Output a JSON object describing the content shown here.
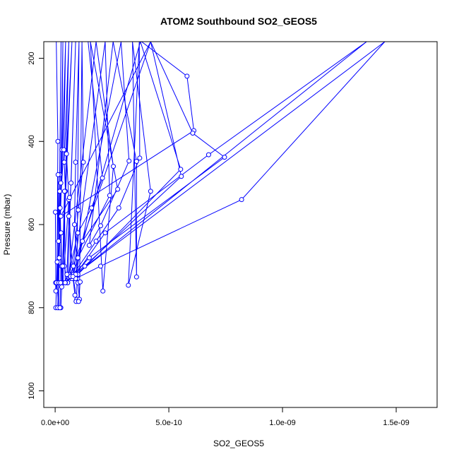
{
  "chart_data": {
    "type": "line",
    "title": "ATOM2 Southbound SO2_GEOS5",
    "xlabel": "SO2_GEOS5",
    "ylabel": "Pressure (mbar)",
    "xlim": [
      -5e-11,
      1.68e-09
    ],
    "ylim": [
      1040,
      160
    ],
    "y_reversed": true,
    "grid": false,
    "x_ticks": [
      0,
      5e-10,
      1e-09,
      1.5e-09
    ],
    "x_tick_labels": [
      "0.0e+00",
      "5.0e-10",
      "1.0e-09",
      "1.5e-09"
    ],
    "y_ticks": [
      200,
      400,
      600,
      800,
      1000
    ],
    "y_tick_labels": [
      "200",
      "400",
      "600",
      "800",
      "1000"
    ],
    "series_color": "#0000ff",
    "series": [
      {
        "points": [
          [
            5e-12,
            160
          ],
          [
            1.2e-11,
            400
          ],
          [
            8e-12,
            740
          ],
          [
            1.5e-11,
            800
          ],
          [
            2e-11,
            520
          ],
          [
            2.6e-11,
            160
          ],
          [
            2e-11,
            480
          ],
          [
            1.2e-11,
            740
          ],
          [
            3e-11,
            420
          ],
          [
            3.4e-11,
            160
          ],
          [
            2.5e-11,
            500
          ],
          [
            1.5e-11,
            640
          ],
          [
            1e-11,
            740
          ],
          [
            1.8e-11,
            680
          ],
          [
            4.6e-11,
            160
          ],
          [
            3.8e-11,
            420
          ],
          [
            2.2e-11,
            560
          ],
          [
            2.8e-11,
            700
          ],
          [
            3.5e-11,
            740
          ],
          [
            6e-11,
            160
          ],
          [
            4e-11,
            450
          ],
          [
            4.5e-11,
            520
          ],
          [
            3e-11,
            740
          ],
          [
            2.5e-11,
            800
          ],
          [
            7.4e-11,
            160
          ],
          [
            5e-11,
            430
          ],
          [
            6e-11,
            540
          ],
          [
            4e-11,
            700
          ],
          [
            5.5e-11,
            740
          ],
          [
            9e-11,
            160
          ],
          [
            7e-11,
            500
          ],
          [
            6e-11,
            580
          ],
          [
            8e-11,
            730
          ],
          [
            9.5e-11,
            780
          ],
          [
            1.05e-10,
            160
          ],
          [
            9e-11,
            450
          ],
          [
            8.5e-11,
            600
          ],
          [
            1e-10,
            740
          ],
          [
            1.07e-10,
            780
          ],
          [
            1.18e-10,
            160
          ],
          [
            1.24e-10,
            450
          ],
          [
            1.02e-10,
            565
          ],
          [
            8e-11,
            700
          ],
          [
            7.5e-11,
            730
          ]
        ]
      },
      {
        "points": [
          [
            1.45e-10,
            160
          ],
          [
            2.08e-10,
            488
          ],
          [
            1.6e-10,
            560
          ],
          [
            1e-10,
            620
          ],
          [
            6e-11,
            720
          ],
          [
            1.8e-10,
            160
          ],
          [
            2.56e-10,
            460
          ],
          [
            2.1e-10,
            760
          ],
          [
            1.55e-10,
            160
          ],
          [
            2.75e-10,
            515
          ],
          [
            1.2e-10,
            640
          ],
          [
            8e-11,
            720
          ],
          [
            2.2e-10,
            160
          ],
          [
            2.4e-10,
            530
          ],
          [
            1e-10,
            680
          ],
          [
            9e-11,
            725
          ],
          [
            2.9e-10,
            160
          ],
          [
            3.25e-10,
            447
          ],
          [
            2e-10,
            603
          ],
          [
            1.5e-10,
            650
          ],
          [
            2.55e-10,
            160
          ],
          [
            3.58e-10,
            448
          ],
          [
            3.58e-10,
            726
          ],
          [
            3.4e-10,
            160
          ],
          [
            4.2e-10,
            520
          ],
          [
            3.22e-10,
            746
          ],
          [
            3.7e-10,
            160
          ],
          [
            3.72e-10,
            440
          ],
          [
            2.8e-10,
            560
          ],
          [
            1.8e-10,
            640
          ],
          [
            8e-11,
            720
          ],
          [
            3.75e-10,
            160
          ],
          [
            5.52e-10,
            467
          ],
          [
            1e-10,
            720
          ],
          [
            5.5e-11,
            740
          ],
          [
            4.2e-10,
            160
          ],
          [
            5.55e-10,
            484
          ],
          [
            1.3e-10,
            700
          ],
          [
            7e-11,
            725
          ]
        ]
      },
      {
        "points": [
          [
            3.8e-10,
            160
          ],
          [
            5.8e-10,
            243
          ],
          [
            6.1e-10,
            374
          ],
          [
            2.5e-11,
            580
          ],
          [
            4.2e-10,
            160
          ],
          [
            6.05e-10,
            380
          ],
          [
            7.45e-10,
            438
          ],
          [
            1.5e-10,
            680
          ],
          [
            4.5e-11,
            740
          ],
          [
            1.37e-09,
            160
          ],
          [
            6.75e-10,
            432
          ],
          [
            2.2e-10,
            620
          ],
          [
            9e-11,
            720
          ],
          [
            1.45e-09,
            160
          ],
          [
            8.2e-10,
            540
          ],
          [
            2e-10,
            700
          ],
          [
            9e-11,
            730
          ]
        ]
      },
      {
        "points": [
          [
            1e-12,
            570
          ],
          [
            3e-12,
            760
          ],
          [
            2e-12,
            740
          ],
          [
            6e-12,
            740
          ],
          [
            3e-12,
            800
          ],
          [
            9e-12,
            690
          ],
          [
            1.3e-11,
            480
          ],
          [
            1.6e-11,
            740
          ],
          [
            1.1e-11,
            800
          ],
          [
            2.1e-11,
            800
          ],
          [
            2.4e-11,
            740
          ],
          [
            2.6e-11,
            620
          ],
          [
            2.9e-11,
            750
          ],
          [
            3.3e-11,
            700
          ],
          [
            4.1e-11,
            520
          ],
          [
            4.4e-11,
            740
          ],
          [
            5.2e-11,
            720
          ],
          [
            6.3e-11,
            535
          ],
          [
            6.8e-11,
            725
          ],
          [
            7.8e-11,
            725
          ],
          [
            8.7e-11,
            770
          ],
          [
            9.2e-11,
            785
          ],
          [
            1.03e-10,
            785
          ],
          [
            1.1e-10,
            738
          ]
        ]
      }
    ]
  }
}
